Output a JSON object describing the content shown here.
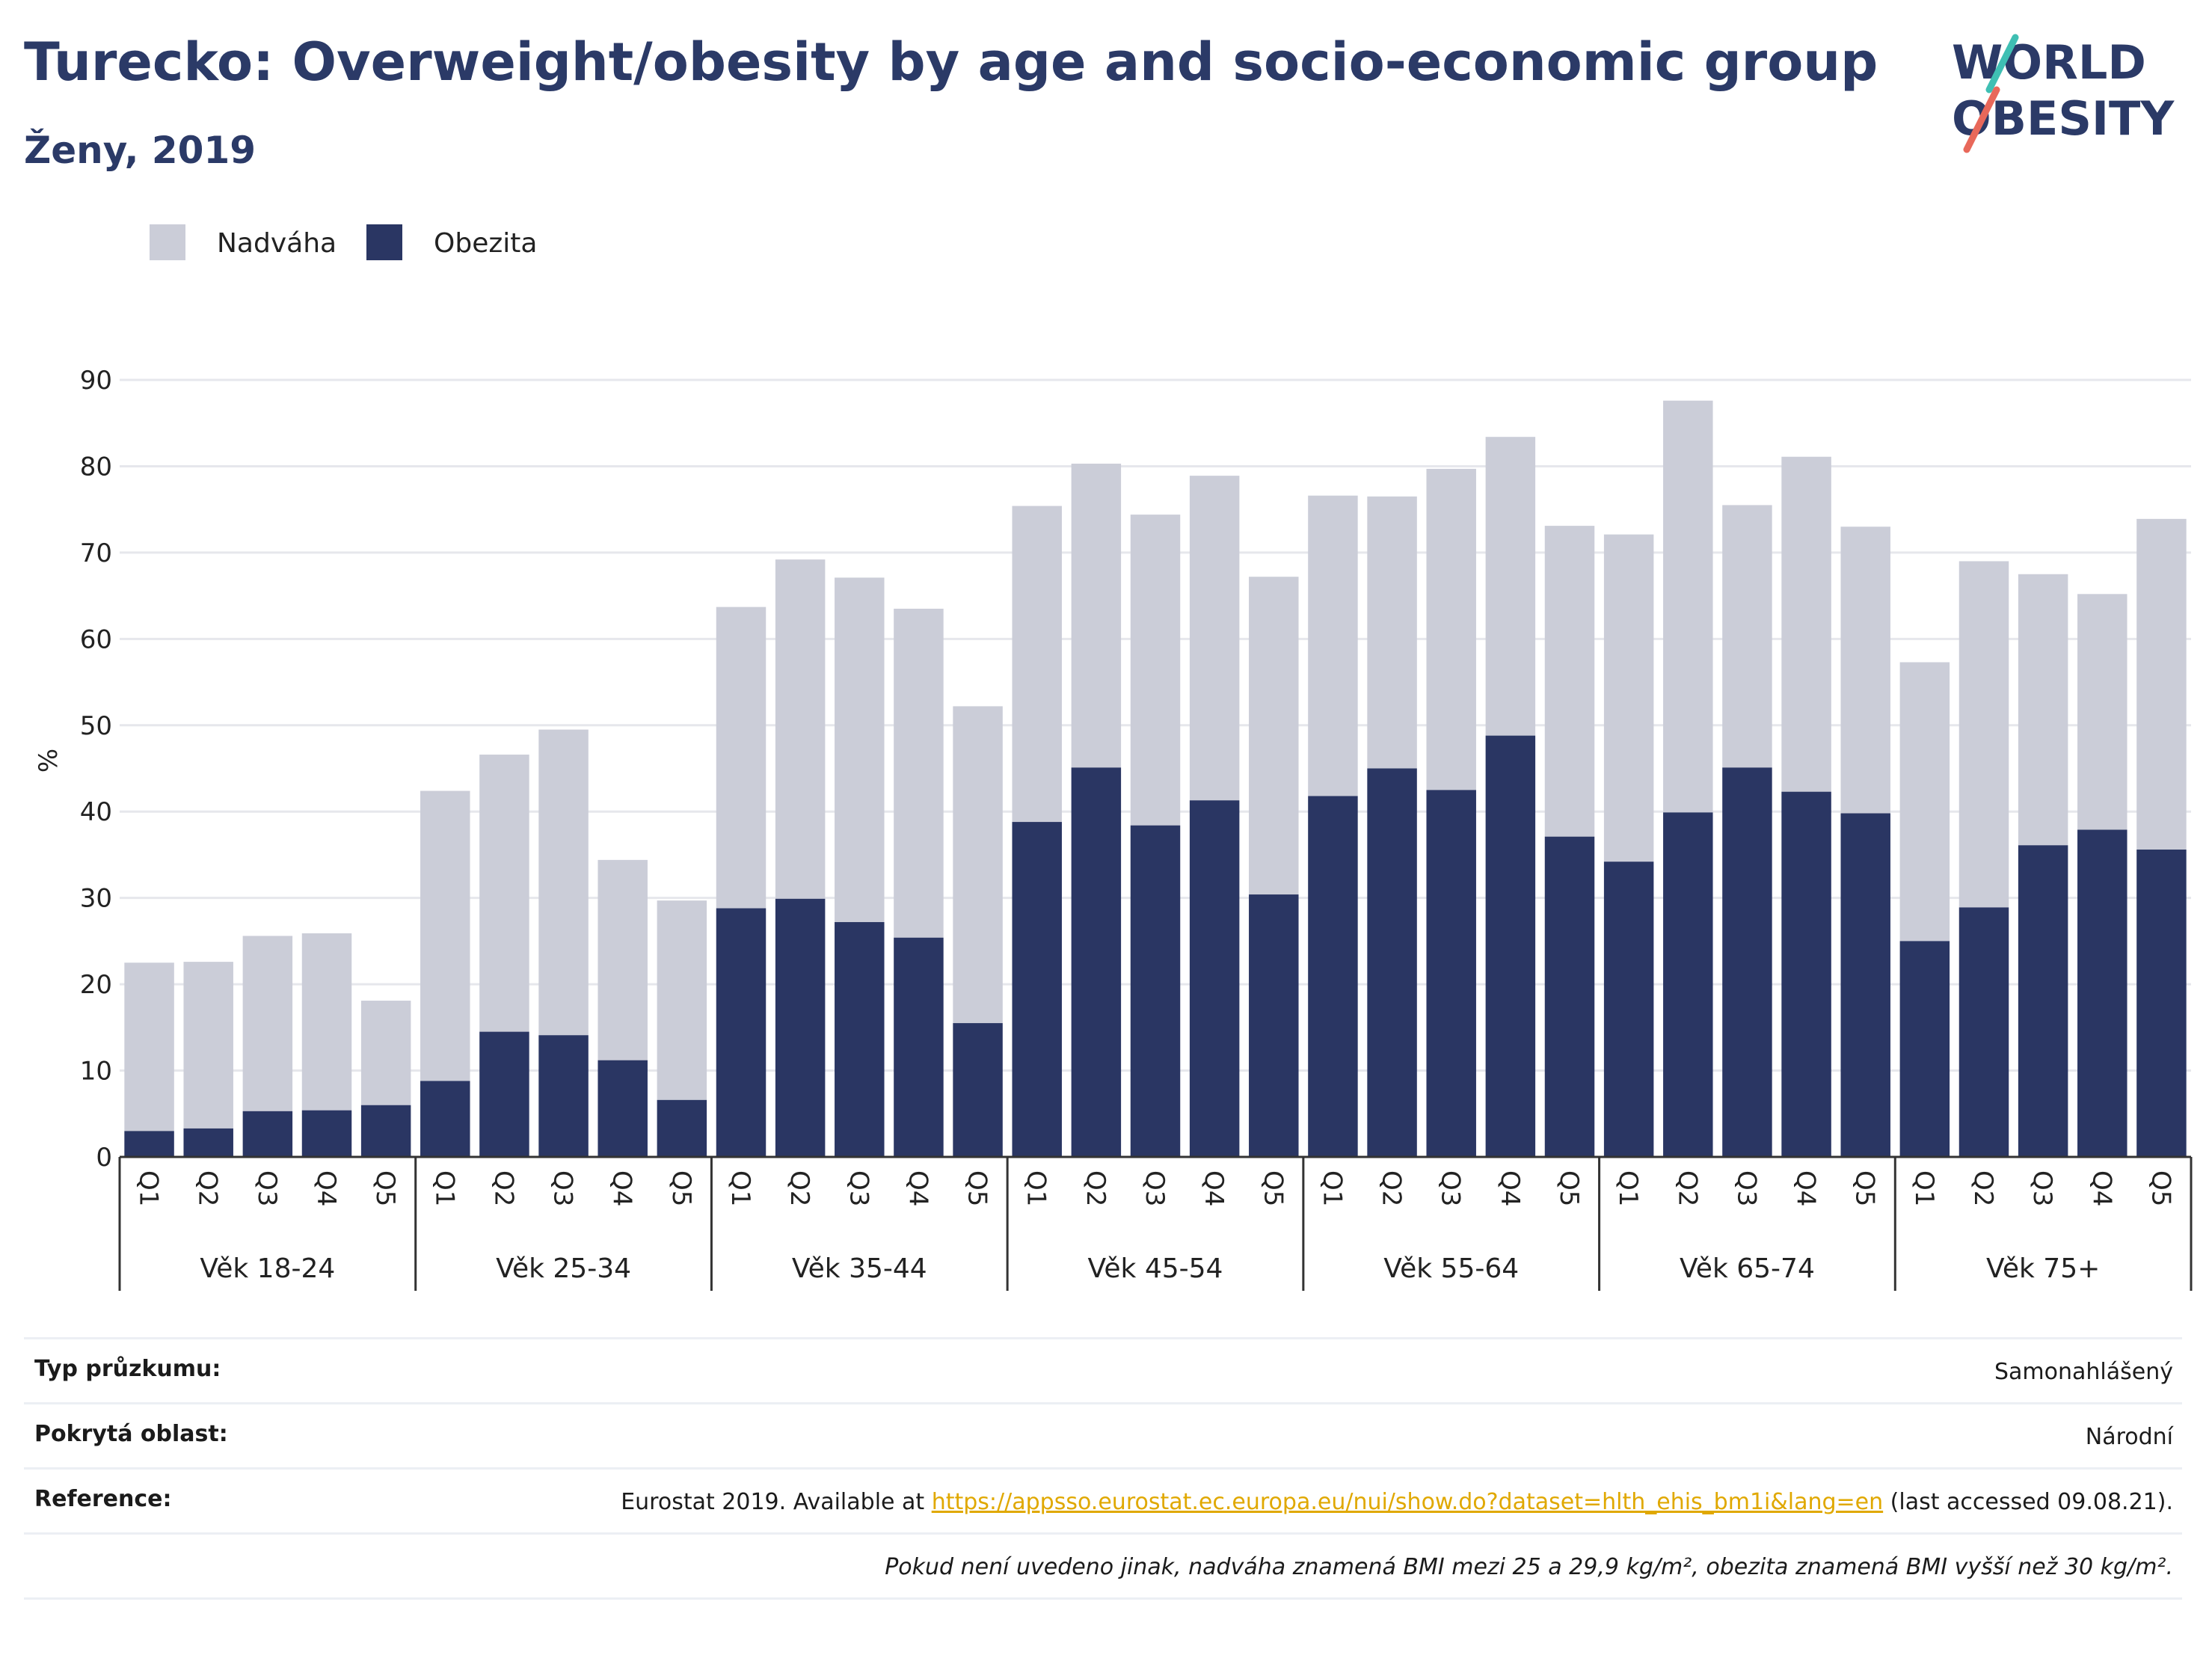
{
  "header": {
    "title": "Turecko: Overweight/obesity by age and socio-economic group",
    "subtitle": "Ženy, 2019"
  },
  "logo": {
    "line1": "WORLD",
    "line2": "OBESITY"
  },
  "colors": {
    "obesity": "#2a3663",
    "overweight": "#cbcdd8",
    "title": "#2b3a67",
    "link": "#e0a800",
    "grid": "#e6e7ec"
  },
  "chart_data": {
    "type": "bar",
    "stacked": true,
    "ylabel": "%",
    "ylim": [
      0,
      90
    ],
    "yticks": [
      0,
      10,
      20,
      30,
      40,
      50,
      60,
      70,
      80,
      90
    ],
    "grid": true,
    "legend_position": "top-left",
    "groups": [
      "Věk 18-24",
      "Věk 25-34",
      "Věk 35-44",
      "Věk 45-54",
      "Věk 55-64",
      "Věk 65-74",
      "Věk 75+"
    ],
    "subcategories": [
      "Q1",
      "Q2",
      "Q3",
      "Q4",
      "Q5"
    ],
    "series": [
      {
        "name": "Obezita",
        "values": [
          3.0,
          3.3,
          5.3,
          5.4,
          6.0,
          8.8,
          14.5,
          14.1,
          11.2,
          6.6,
          28.8,
          29.9,
          27.2,
          25.4,
          15.5,
          38.8,
          45.1,
          38.4,
          41.3,
          30.4,
          41.8,
          45.0,
          42.5,
          48.8,
          37.1,
          34.2,
          39.9,
          45.1,
          42.3,
          39.8,
          25.0,
          28.9,
          36.1,
          37.9,
          35.6
        ]
      },
      {
        "name": "Nadváha",
        "values": [
          19.5,
          19.3,
          20.3,
          20.5,
          12.1,
          33.6,
          32.1,
          35.4,
          23.2,
          23.1,
          34.9,
          39.3,
          39.9,
          38.1,
          36.7,
          36.6,
          35.2,
          36.0,
          37.6,
          36.8,
          34.8,
          31.5,
          37.2,
          34.6,
          36.0,
          37.9,
          47.7,
          30.4,
          38.8,
          33.2,
          32.3,
          40.1,
          31.4,
          27.3,
          38.3
        ]
      }
    ]
  },
  "info": {
    "rows": [
      {
        "key": "Typ průzkumu:",
        "value": "Samonahlášený"
      },
      {
        "key": "Pokrytá oblast:",
        "value": "Národní"
      }
    ],
    "reference_key": "Reference:",
    "reference_prefix": "Eurostat 2019. Available at ",
    "reference_link": "https://appsso.eurostat.ec.europa.eu/nui/show.do?dataset=hlth_ehis_bm1i&lang=en",
    "reference_suffix": " (last accessed 09.08.21).",
    "note": "Pokud není uvedeno jinak, nadváha znamená BMI mezi 25 a 29,9 kg/m², obezita znamená BMI vyšší než 30 kg/m²."
  }
}
